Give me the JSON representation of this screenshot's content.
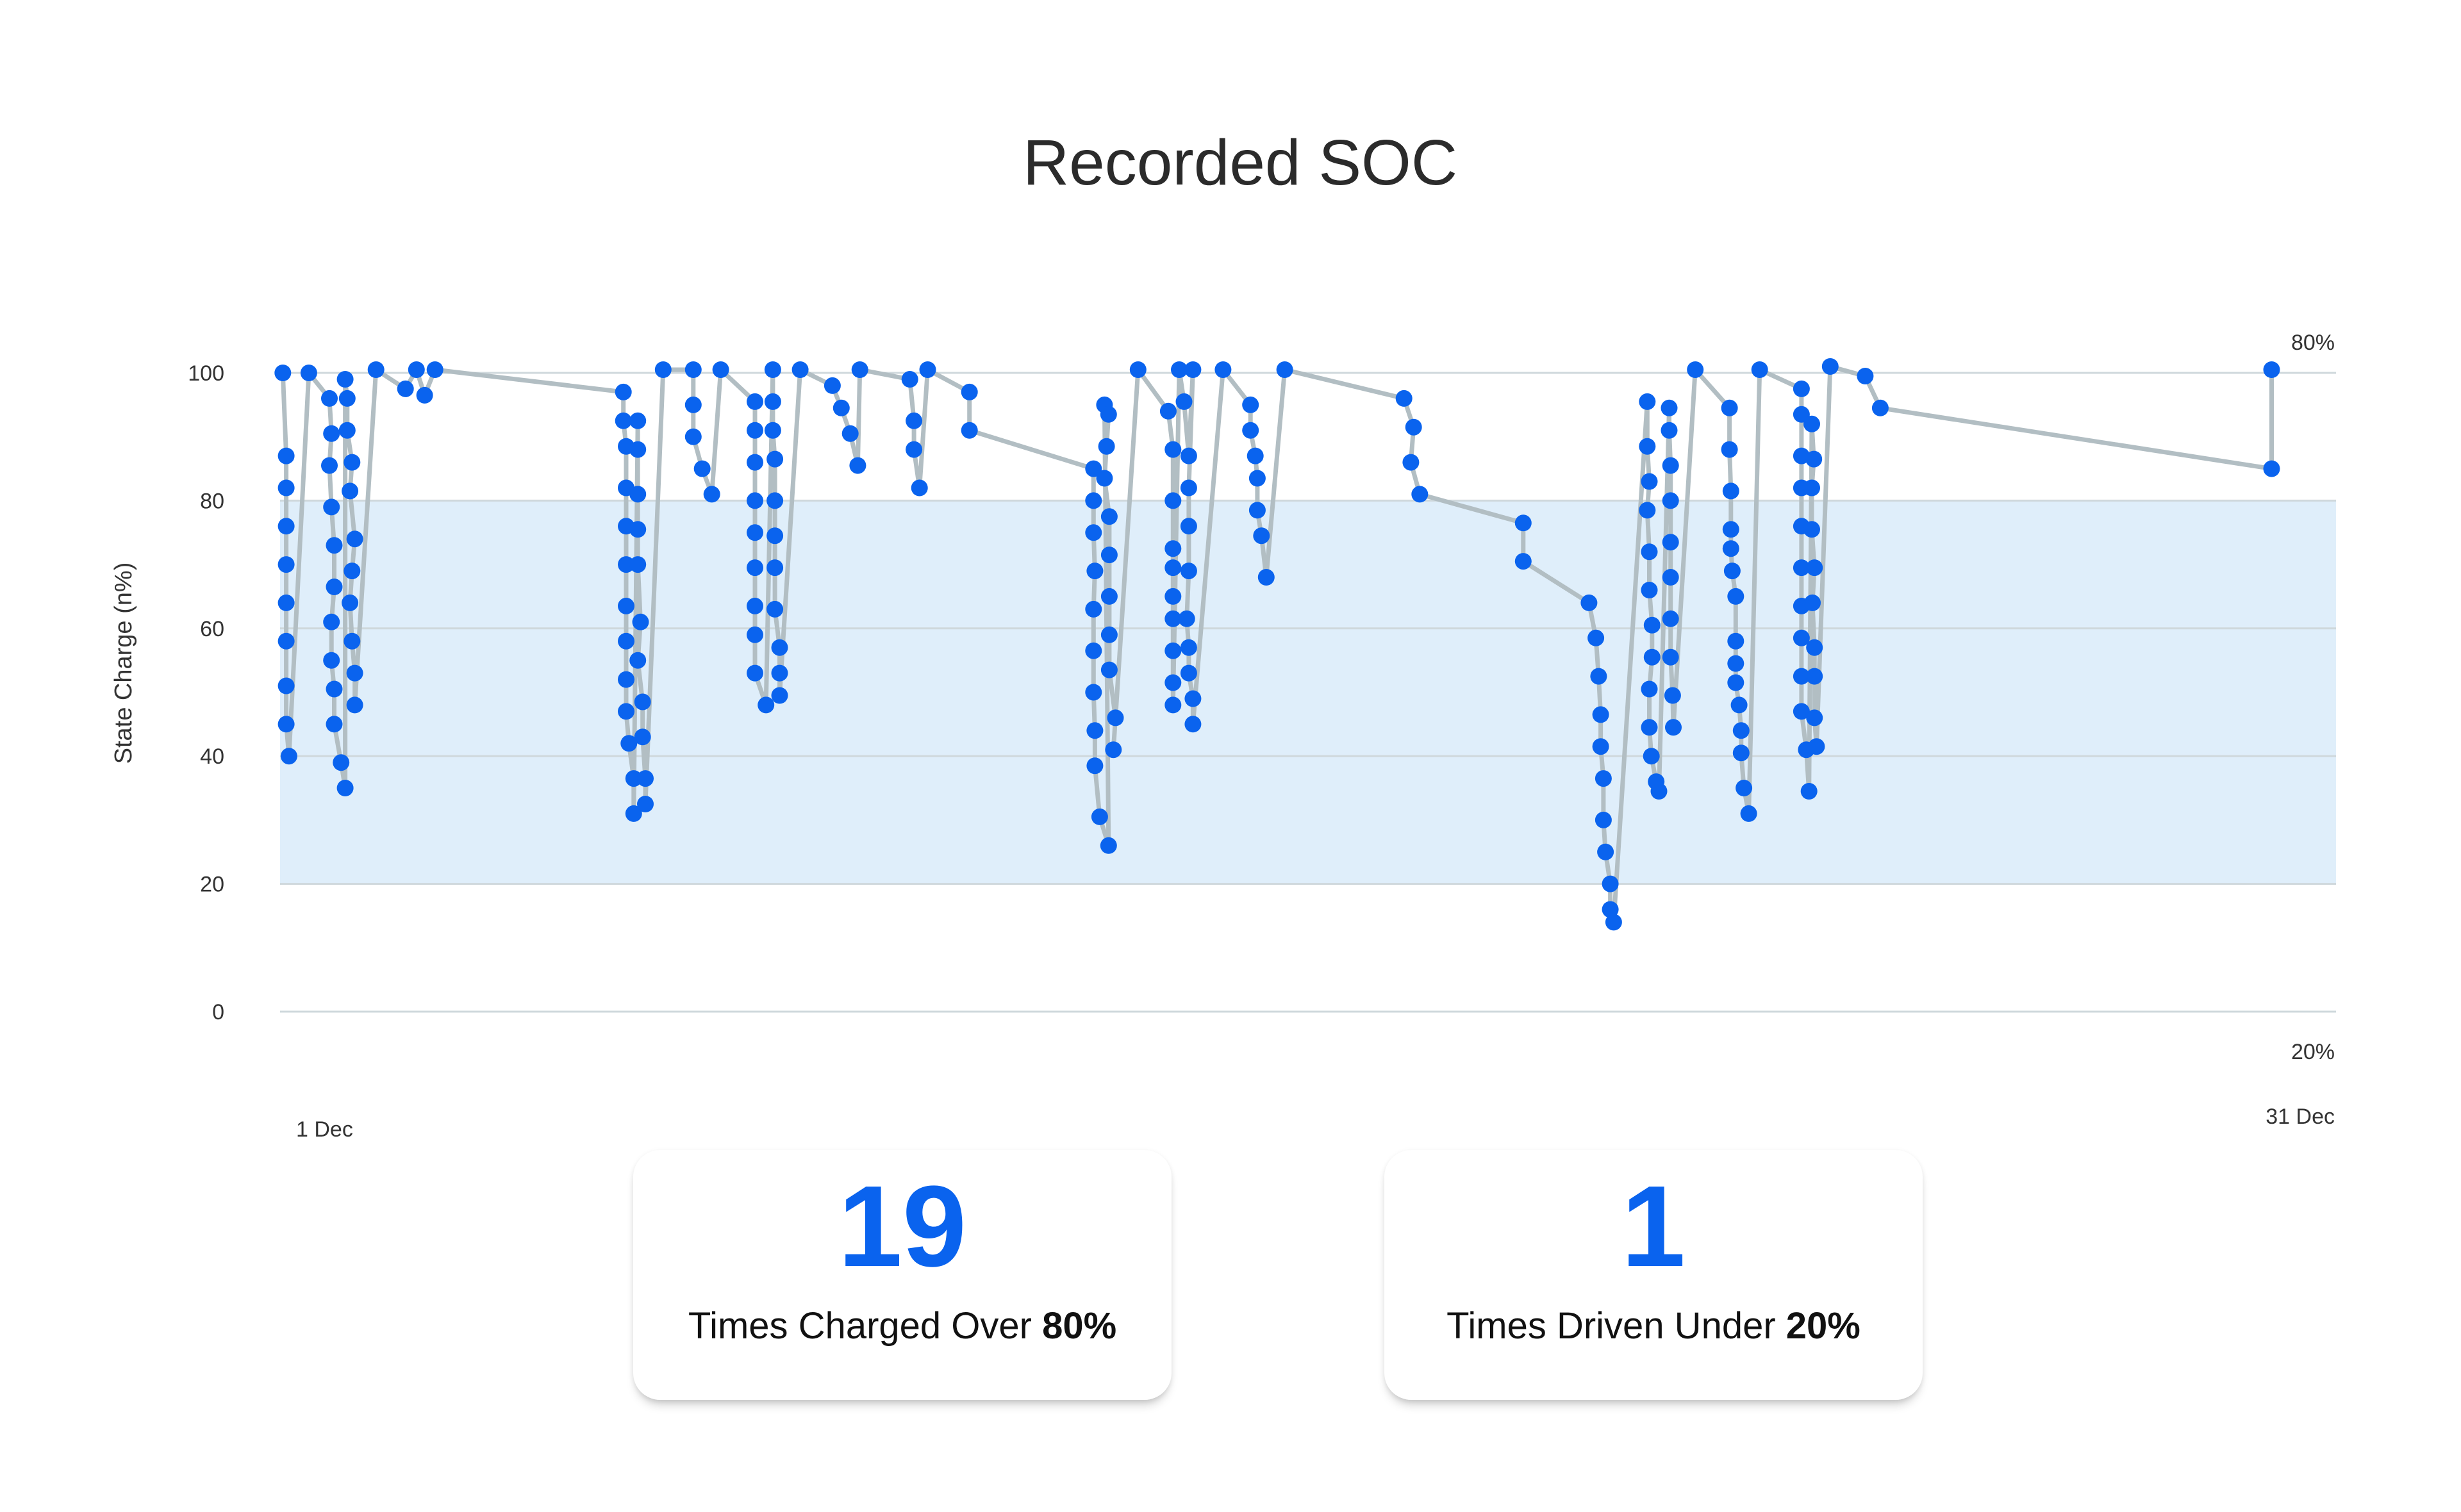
{
  "chart_data": {
    "type": "line",
    "title": "Recorded SOC",
    "ylabel": "State Charge (n%)",
    "ylim": [
      0,
      100
    ],
    "yticks": [
      "0",
      "20",
      "40",
      "60",
      "80",
      "100"
    ],
    "x_start_label": "1 Dec",
    "x_end_label": "31 Dec",
    "band": {
      "low": 20,
      "high": 80,
      "color": "#dfeefa"
    },
    "band_labels": {
      "high": "80%",
      "low": "20%"
    },
    "grid": true,
    "colors": {
      "line": "#b2bec3",
      "point": "#0a63ee",
      "grid": "#cfd8dc"
    },
    "x_domain": [
      1,
      31
    ],
    "series": [
      {
        "values": [
          [
            1.04,
            100
          ],
          [
            1.09,
            87
          ],
          [
            1.09,
            82
          ],
          [
            1.09,
            76
          ],
          [
            1.09,
            70
          ],
          [
            1.09,
            64
          ],
          [
            1.09,
            58
          ],
          [
            1.09,
            51
          ],
          [
            1.09,
            45
          ],
          [
            1.13,
            40
          ],
          [
            1.42,
            100
          ],
          [
            1.72,
            96
          ],
          [
            1.75,
            90.5
          ],
          [
            1.72,
            85.5
          ],
          [
            1.75,
            79
          ],
          [
            1.79,
            73
          ],
          [
            1.79,
            66.5
          ],
          [
            1.75,
            61
          ],
          [
            1.75,
            55
          ],
          [
            1.79,
            50.5
          ],
          [
            1.79,
            45
          ],
          [
            1.89,
            39
          ],
          [
            1.95,
            35
          ],
          [
            1.95,
            99
          ],
          [
            1.98,
            96
          ],
          [
            1.98,
            91
          ],
          [
            2.05,
            86
          ],
          [
            2.02,
            81.5
          ],
          [
            2.09,
            74
          ],
          [
            2.05,
            69
          ],
          [
            2.02,
            64
          ],
          [
            2.05,
            58
          ],
          [
            2.09,
            53
          ],
          [
            2.09,
            48
          ],
          [
            2.4,
            100.5
          ],
          [
            2.83,
            97.5
          ],
          [
            2.99,
            100.5
          ],
          [
            3.11,
            96.5
          ],
          [
            3.26,
            100.5
          ],
          [
            6.01,
            97
          ],
          [
            6.01,
            92.5
          ],
          [
            6.05,
            88.5
          ],
          [
            6.05,
            82
          ],
          [
            6.05,
            76
          ],
          [
            6.05,
            70
          ],
          [
            6.05,
            63.5
          ],
          [
            6.05,
            58
          ],
          [
            6.05,
            52
          ],
          [
            6.05,
            47
          ],
          [
            6.09,
            42
          ],
          [
            6.16,
            36.5
          ],
          [
            6.16,
            31
          ],
          [
            6.22,
            92.5
          ],
          [
            6.22,
            88
          ],
          [
            6.22,
            81
          ],
          [
            6.22,
            75.5
          ],
          [
            6.22,
            70
          ],
          [
            6.26,
            61
          ],
          [
            6.22,
            55
          ],
          [
            6.29,
            48.5
          ],
          [
            6.29,
            43
          ],
          [
            6.33,
            36.5
          ],
          [
            6.33,
            32.5
          ],
          [
            6.59,
            100.5
          ],
          [
            7.03,
            100.5
          ],
          [
            7.03,
            95
          ],
          [
            7.03,
            90
          ],
          [
            7.16,
            85
          ],
          [
            7.3,
            81
          ],
          [
            7.43,
            100.5
          ],
          [
            7.93,
            95.5
          ],
          [
            7.93,
            91
          ],
          [
            7.93,
            86
          ],
          [
            7.93,
            80
          ],
          [
            7.93,
            75
          ],
          [
            7.93,
            69.5
          ],
          [
            7.93,
            63.5
          ],
          [
            7.93,
            59
          ],
          [
            7.93,
            53
          ],
          [
            8.09,
            48
          ],
          [
            8.19,
            100.5
          ],
          [
            8.19,
            95.5
          ],
          [
            8.19,
            91
          ],
          [
            8.22,
            86.5
          ],
          [
            8.22,
            80
          ],
          [
            8.22,
            74.5
          ],
          [
            8.22,
            69.5
          ],
          [
            8.22,
            63
          ],
          [
            8.29,
            57
          ],
          [
            8.29,
            53
          ],
          [
            8.29,
            49.5
          ],
          [
            8.59,
            100.5
          ],
          [
            9.06,
            98
          ],
          [
            9.19,
            94.5
          ],
          [
            9.32,
            90.5
          ],
          [
            9.43,
            85.5
          ],
          [
            9.46,
            100.5
          ],
          [
            10.19,
            99
          ],
          [
            10.25,
            92.5
          ],
          [
            10.25,
            88
          ],
          [
            10.33,
            82
          ],
          [
            10.45,
            100.5
          ],
          [
            11.06,
            97
          ],
          [
            11.06,
            91
          ],
          [
            12.87,
            85
          ],
          [
            12.87,
            80
          ],
          [
            12.87,
            75
          ],
          [
            12.89,
            69
          ],
          [
            12.87,
            63
          ],
          [
            12.87,
            56.5
          ],
          [
            12.87,
            50
          ],
          [
            12.89,
            44
          ],
          [
            12.89,
            38.5
          ],
          [
            12.96,
            30.5
          ],
          [
            13.09,
            26
          ],
          [
            13.03,
            95
          ],
          [
            13.09,
            93.5
          ],
          [
            13.06,
            88.5
          ],
          [
            13.03,
            83.5
          ],
          [
            13.1,
            77.5
          ],
          [
            13.1,
            71.5
          ],
          [
            13.1,
            65
          ],
          [
            13.1,
            59
          ],
          [
            13.1,
            53.5
          ],
          [
            13.19,
            46
          ],
          [
            13.16,
            41
          ],
          [
            13.52,
            100.5
          ],
          [
            13.96,
            94
          ],
          [
            14.03,
            88
          ],
          [
            14.03,
            80
          ],
          [
            14.03,
            72.5
          ],
          [
            14.03,
            69.5
          ],
          [
            14.03,
            65
          ],
          [
            14.03,
            61.5
          ],
          [
            14.03,
            56.5
          ],
          [
            14.03,
            51.5
          ],
          [
            14.03,
            48
          ],
          [
            14.12,
            100.5
          ],
          [
            14.19,
            95.5
          ],
          [
            14.26,
            87
          ],
          [
            14.32,
            100.5
          ],
          [
            14.26,
            82
          ],
          [
            14.26,
            76
          ],
          [
            14.26,
            69
          ],
          [
            14.23,
            61.5
          ],
          [
            14.26,
            57
          ],
          [
            14.26,
            53
          ],
          [
            14.32,
            49
          ],
          [
            14.32,
            45
          ],
          [
            14.76,
            100.5
          ],
          [
            15.16,
            95
          ],
          [
            15.16,
            91
          ],
          [
            15.23,
            87
          ],
          [
            15.26,
            83.5
          ],
          [
            15.26,
            78.5
          ],
          [
            15.32,
            74.5
          ],
          [
            15.39,
            68
          ],
          [
            15.66,
            100.5
          ],
          [
            17.4,
            96
          ],
          [
            17.54,
            91.5
          ],
          [
            17.5,
            86
          ],
          [
            17.63,
            81
          ],
          [
            19.14,
            76.5
          ],
          [
            19.14,
            70.5
          ],
          [
            20.1,
            64
          ],
          [
            20.2,
            58.5
          ],
          [
            20.24,
            52.5
          ],
          [
            20.27,
            46.5
          ],
          [
            20.27,
            41.5
          ],
          [
            20.31,
            36.5
          ],
          [
            20.31,
            30
          ],
          [
            20.34,
            25
          ],
          [
            20.41,
            20
          ],
          [
            20.41,
            16
          ],
          [
            20.46,
            14
          ],
          [
            20.95,
            95.5
          ],
          [
            20.95,
            88.5
          ],
          [
            20.98,
            83
          ],
          [
            20.95,
            78.5
          ],
          [
            20.98,
            72
          ],
          [
            20.98,
            66
          ],
          [
            21.02,
            60.5
          ],
          [
            21.02,
            55.5
          ],
          [
            20.98,
            50.5
          ],
          [
            20.98,
            44.5
          ],
          [
            21.01,
            40
          ],
          [
            21.08,
            36
          ],
          [
            21.12,
            34.5
          ],
          [
            21.27,
            94.5
          ],
          [
            21.27,
            91
          ],
          [
            21.29,
            85.5
          ],
          [
            21.29,
            80
          ],
          [
            21.29,
            73.5
          ],
          [
            21.29,
            68
          ],
          [
            21.29,
            61.5
          ],
          [
            21.29,
            55.5
          ],
          [
            21.32,
            49.5
          ],
          [
            21.33,
            44.5
          ],
          [
            21.65,
            100.5
          ],
          [
            22.15,
            94.5
          ],
          [
            22.15,
            88
          ],
          [
            22.17,
            81.5
          ],
          [
            22.17,
            75.5
          ],
          [
            22.17,
            72.5
          ],
          [
            22.19,
            69
          ],
          [
            22.24,
            65
          ],
          [
            22.24,
            58
          ],
          [
            22.24,
            54.5
          ],
          [
            22.24,
            51.5
          ],
          [
            22.29,
            48
          ],
          [
            22.32,
            44
          ],
          [
            22.32,
            40.5
          ],
          [
            22.36,
            35
          ],
          [
            22.43,
            31
          ],
          [
            22.59,
            100.5
          ],
          [
            23.2,
            97.5
          ],
          [
            23.2,
            93.5
          ],
          [
            23.2,
            87
          ],
          [
            23.2,
            82
          ],
          [
            23.2,
            76
          ],
          [
            23.2,
            69.5
          ],
          [
            23.2,
            63.5
          ],
          [
            23.2,
            58.5
          ],
          [
            23.2,
            52.5
          ],
          [
            23.2,
            47
          ],
          [
            23.27,
            41
          ],
          [
            23.31,
            34.5
          ],
          [
            23.35,
            92
          ],
          [
            23.38,
            86.5
          ],
          [
            23.35,
            82
          ],
          [
            23.35,
            75.5
          ],
          [
            23.39,
            69.5
          ],
          [
            23.36,
            64
          ],
          [
            23.39,
            57
          ],
          [
            23.39,
            52.5
          ],
          [
            23.39,
            46
          ],
          [
            23.42,
            41.5
          ],
          [
            23.62,
            101
          ],
          [
            24.13,
            99.5
          ],
          [
            24.35,
            94.5
          ],
          [
            30.06,
            85
          ],
          [
            30.06,
            100.5
          ]
        ]
      }
    ]
  },
  "stats": [
    {
      "value": "19",
      "caption_prefix": "Times Charged Over ",
      "caption_bold": "80%"
    },
    {
      "value": "1",
      "caption_prefix": "Times Driven Under ",
      "caption_bold": "20%"
    }
  ]
}
